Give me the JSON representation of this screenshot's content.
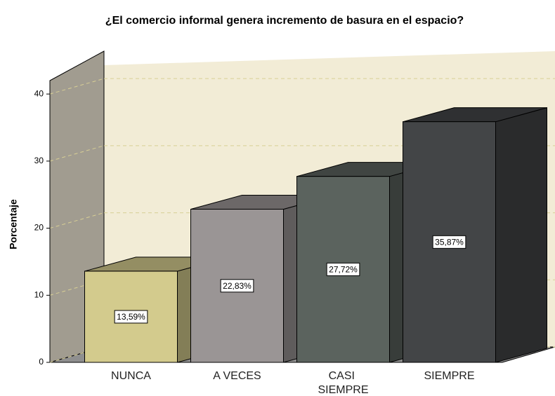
{
  "chart_data": {
    "type": "bar3d",
    "title": "¿El comercio informal genera incremento de basura en el espacio?",
    "y_label": "Porcentaje",
    "categories": [
      "NUNCA",
      "A VECES",
      "CASI SIEMPRE",
      "SIEMPRE"
    ],
    "values": [
      13.59,
      22.83,
      27.72,
      35.87
    ],
    "value_labels": [
      "13,59%",
      "22,83%",
      "27,72%",
      "35,87%"
    ],
    "colors": [
      "#d3cb8d",
      "#9a9595",
      "#5b635e",
      "#434547"
    ],
    "ylim": [
      0,
      42
    ],
    "yticks": [
      0,
      10,
      20,
      30,
      40
    ],
    "grid": true
  }
}
